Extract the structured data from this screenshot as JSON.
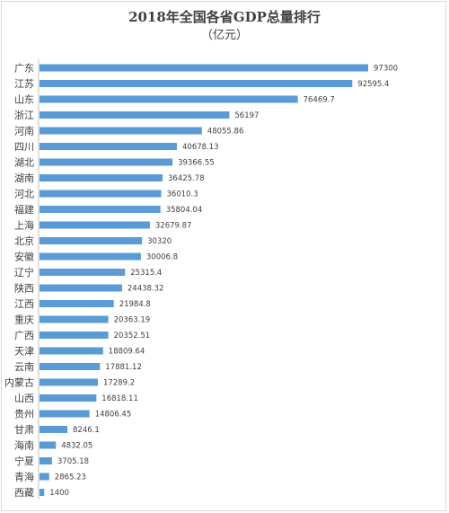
{
  "chart_data": {
    "type": "bar",
    "orientation": "horizontal",
    "title": "2018年全国各省GDP总量排行",
    "subtitle": "（亿元）",
    "categories": [
      "广东",
      "江苏",
      "山东",
      "浙江",
      "河南",
      "四川",
      "湖北",
      "湖南",
      "河北",
      "福建",
      "上海",
      "北京",
      "安徽",
      "辽宁",
      "陕西",
      "江西",
      "重庆",
      "广西",
      "天津",
      "云南",
      "内蒙古",
      "山西",
      "贵州",
      "甘肃",
      "海南",
      "宁夏",
      "青海",
      "西藏"
    ],
    "values": [
      97300,
      92595.4,
      76469.7,
      56197,
      48055.86,
      40678.13,
      39366.55,
      36425.78,
      36010.3,
      35804.04,
      32679.87,
      30320,
      30006.8,
      25315.4,
      24438.32,
      21984.8,
      20363.19,
      20352.51,
      18809.64,
      17881.12,
      17289.2,
      16818.11,
      14806.45,
      8246.1,
      4832.05,
      3705.18,
      2865.23,
      1400
    ],
    "value_labels": [
      "97300",
      "92595.4",
      "76469.7",
      "56197",
      "48055.86",
      "40678.13",
      "39366.55",
      "36425.78",
      "36010.3",
      "35804.04",
      "32679.87",
      "30320",
      "30006.8",
      "25315.4",
      "24438.32",
      "21984.8",
      "20363.19",
      "20352.51",
      "18809.64",
      "17881.12",
      "17289.2",
      "16818.11",
      "14806.45",
      "8246.1",
      "4832.05",
      "3705.18",
      "2865.23",
      "1400"
    ],
    "xlim": [
      0,
      97300
    ],
    "grid": false,
    "legend": "none",
    "bar_color": "#5b9bd5"
  }
}
